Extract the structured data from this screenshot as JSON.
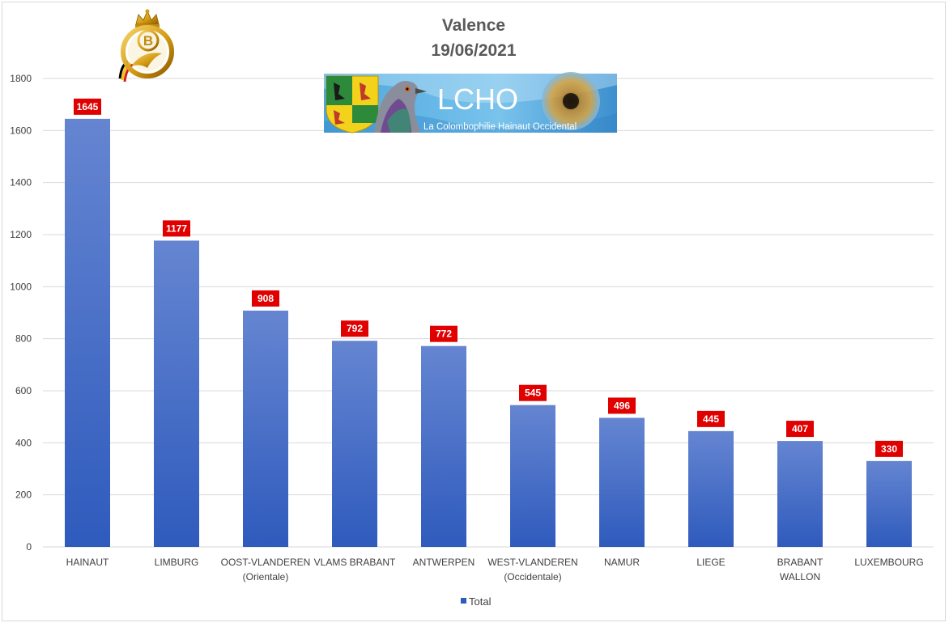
{
  "chart_data": {
    "type": "bar",
    "title": "Valence",
    "subtitle": "19/06/2021",
    "categories": [
      [
        "HAINAUT"
      ],
      [
        "LIMBURG"
      ],
      [
        "OOST-VLANDEREN",
        "(Orientale)"
      ],
      [
        "VLAMS BRABANT"
      ],
      [
        "ANTWERPEN"
      ],
      [
        "WEST-VLANDEREN",
        "(Occidentale)"
      ],
      [
        "NAMUR"
      ],
      [
        "LIEGE"
      ],
      [
        "BRABANT",
        "WALLON"
      ],
      [
        "LUXEMBOURG"
      ]
    ],
    "series": [
      {
        "name": "Total",
        "values": [
          1645,
          1177,
          908,
          792,
          772,
          545,
          496,
          445,
          407,
          330
        ]
      }
    ],
    "ylim": [
      0,
      1800
    ],
    "yticks": [
      0,
      200,
      400,
      600,
      800,
      1000,
      1200,
      1400,
      1600,
      1800
    ],
    "grid": true,
    "legend": "bottom",
    "data_labels": true,
    "colors": {
      "bar_top": "#6585d1",
      "bar_bottom": "#2f5bbd",
      "label_bg": "#e00000",
      "gridline": "#d9d9d9"
    }
  },
  "logos": {
    "federation_letter": "B",
    "banner_title": "LCHO",
    "banner_subtitle": "La Colombophilie Hainaut Occidental"
  }
}
